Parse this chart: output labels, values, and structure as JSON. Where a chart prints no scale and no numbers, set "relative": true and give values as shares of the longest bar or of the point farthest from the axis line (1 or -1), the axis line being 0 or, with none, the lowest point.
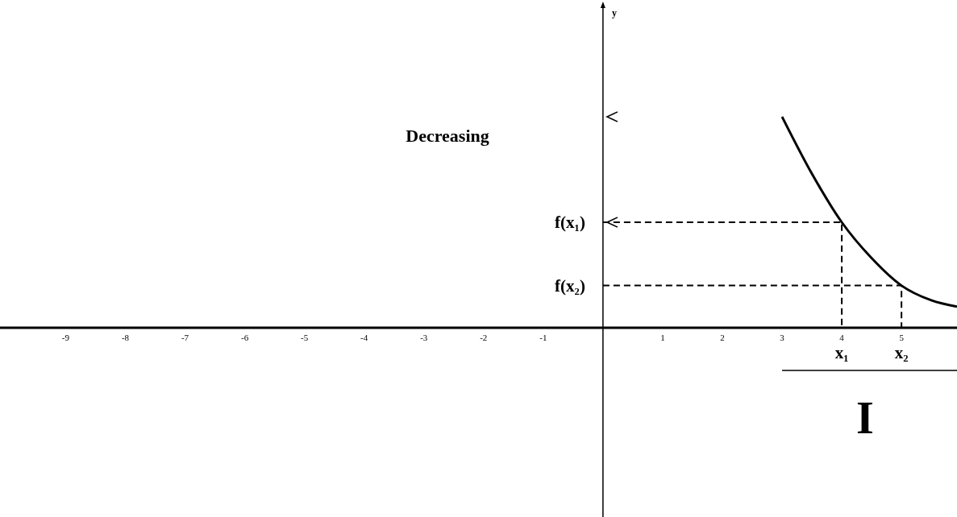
{
  "chart_data": {
    "type": "line",
    "relative": true,
    "xlim": [
      -10.1,
      5.93
    ],
    "xticks": [
      -9,
      -8,
      -7,
      -6,
      -5,
      -4,
      -3,
      -2,
      -1,
      1,
      2,
      3,
      4,
      5
    ],
    "marker": "none",
    "series": [
      {
        "color": "#000000",
        "line_style": "solid",
        "x": [
          3,
          3.5,
          4,
          4.5,
          5,
          5.5,
          5.93
        ],
        "values": [
          1,
          0.73,
          0.5,
          0.33,
          0.2,
          0.13,
          0.1
        ]
      },
      {
        "color": "#000000",
        "line_style": "dashed",
        "x": [
          0,
          4,
          4
        ],
        "values": [
          0.5,
          0.5,
          0
        ]
      },
      {
        "color": "#000000",
        "line_style": "dashed",
        "x": [
          0,
          5,
          5
        ],
        "values": [
          0.2,
          0.2,
          0
        ]
      }
    ],
    "annotations": [
      "y",
      "Decreasing",
      {
        "text": "f(x₁)",
        "x": 0,
        "y": 0.5
      },
      {
        "text": "f(x₂)",
        "x": 0,
        "y": 0.2
      },
      {
        "text": "x₁",
        "x": 4,
        "y": 0
      },
      {
        "text": "x₂",
        "x": 5,
        "y": 0
      },
      "I"
    ]
  }
}
